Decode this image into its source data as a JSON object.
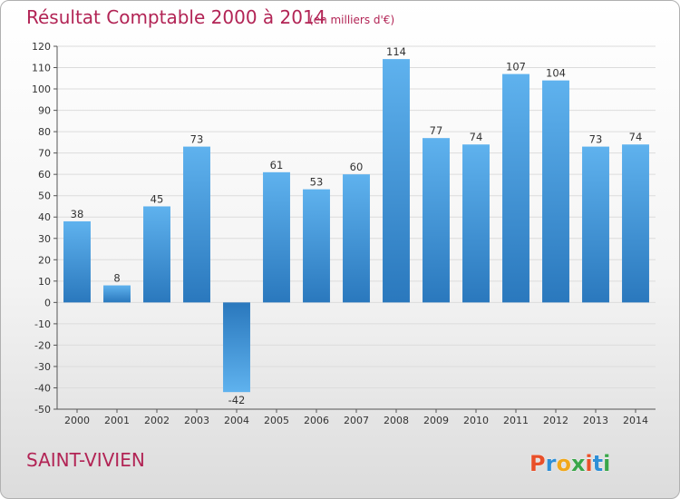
{
  "chart_data": {
    "type": "bar",
    "title": "Résultat Comptable 2000 à 2014",
    "unit_label": "(en milliers d'€)",
    "categories": [
      "2000",
      "2001",
      "2002",
      "2003",
      "2004",
      "2005",
      "2006",
      "2007",
      "2008",
      "2009",
      "2010",
      "2011",
      "2012",
      "2013",
      "2014"
    ],
    "values": [
      38,
      8,
      45,
      73,
      -42,
      61,
      53,
      60,
      114,
      77,
      74,
      107,
      104,
      73,
      74
    ],
    "ylim": [
      -50,
      120
    ],
    "yticks": [
      -50,
      -40,
      -30,
      -20,
      -10,
      0,
      10,
      20,
      30,
      40,
      50,
      60,
      70,
      80,
      90,
      100,
      110,
      120
    ],
    "grid": true,
    "bar_color_light": "#5fb2ee",
    "bar_color_dark": "#2a78bd"
  },
  "commune": "SAINT-VIVIEN",
  "brand": {
    "letters": [
      "P",
      "r",
      "o",
      "x",
      "i",
      "t",
      "i"
    ],
    "colors": [
      "#e8502a",
      "#2f8fd6",
      "#f0a81c",
      "#3aa64a",
      "#e8502a",
      "#2f8fd6",
      "#3aa64a"
    ]
  },
  "colors": {
    "accent": "#b22455",
    "grid": "#dcdcdc"
  }
}
